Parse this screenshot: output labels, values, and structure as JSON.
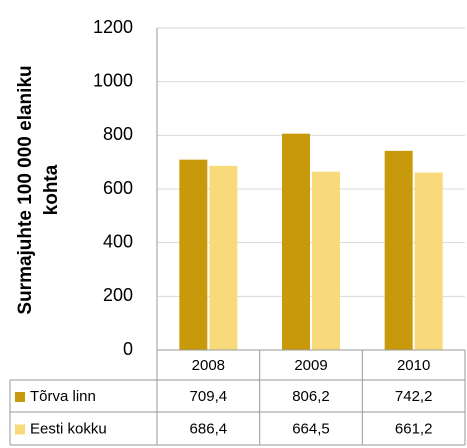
{
  "chart_data": {
    "type": "bar",
    "y_label": "Surmajuhte 100 000 elaniku kohta",
    "categories": [
      "2008",
      "2009",
      "2010"
    ],
    "series": [
      {
        "name": "Tõrva linn",
        "color": "#c9990c",
        "values": [
          709.4,
          806.2,
          742.2
        ],
        "value_labels": [
          "709,4",
          "806,2",
          "742,2"
        ]
      },
      {
        "name": "Eesti kokku",
        "color": "#f9da7a",
        "values": [
          686.4,
          664.5,
          661.2
        ],
        "value_labels": [
          "686,4",
          "664,5",
          "661,2"
        ]
      }
    ],
    "ylim": [
      0,
      1200
    ],
    "yticks": [
      0,
      200,
      400,
      600,
      800,
      1000,
      1200
    ],
    "grid": true
  }
}
